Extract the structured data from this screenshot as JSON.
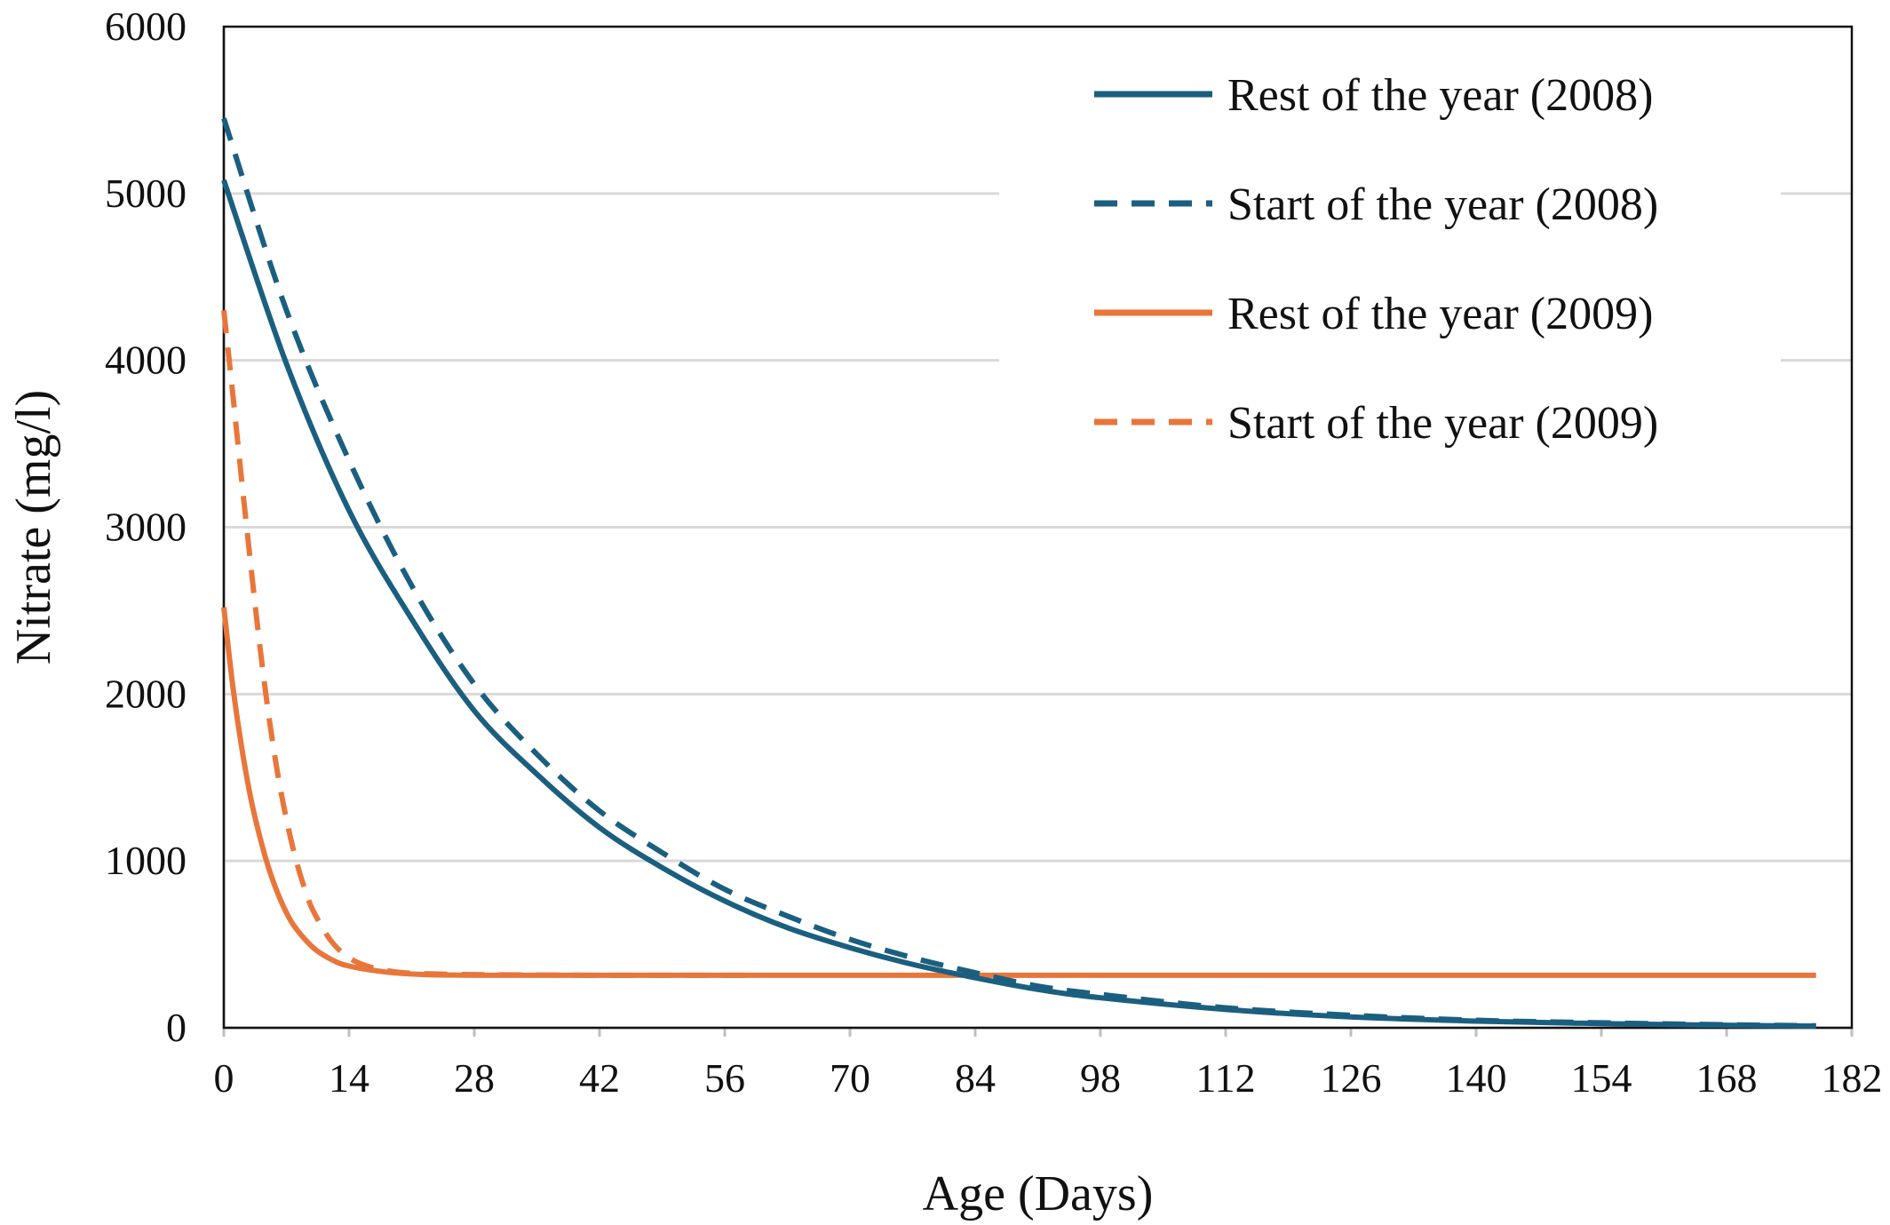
{
  "chart_data": {
    "type": "line",
    "title": "",
    "xlabel": "Age (Days)",
    "ylabel": "Nitrate (mg/l)",
    "xlim": [
      0,
      182
    ],
    "ylim": [
      0,
      6000
    ],
    "x_ticks": [
      0,
      14,
      28,
      42,
      56,
      70,
      84,
      98,
      112,
      126,
      140,
      154,
      168,
      182
    ],
    "y_ticks": [
      0,
      1000,
      2000,
      3000,
      4000,
      5000,
      6000
    ],
    "grid": "horizontal",
    "legend_position": "top-right",
    "series": [
      {
        "name": "Rest of the year (2008)",
        "color": "#1b5f80",
        "dash": "solid",
        "x": [
          0,
          7,
          14,
          21,
          28,
          35,
          42,
          49,
          56,
          63,
          70,
          77,
          84,
          91,
          98,
          112,
          126,
          140,
          154,
          168,
          178
        ],
        "y": [
          5080,
          3980,
          3100,
          2450,
          1900,
          1520,
          1200,
          960,
          760,
          600,
          480,
          380,
          300,
          230,
          180,
          110,
          65,
          40,
          25,
          15,
          10
        ]
      },
      {
        "name": "Start of the year (2008)",
        "color": "#1b5f80",
        "dash": "dashed",
        "x": [
          0,
          7,
          14,
          21,
          28,
          35,
          42,
          49,
          56,
          63,
          70,
          77,
          84,
          91,
          98,
          112,
          126,
          140,
          154,
          168,
          178
        ],
        "y": [
          5450,
          4300,
          3400,
          2650,
          2060,
          1640,
          1300,
          1050,
          830,
          670,
          530,
          420,
          330,
          250,
          200,
          120,
          75,
          45,
          30,
          18,
          12
        ]
      },
      {
        "name": "Rest of the year (2009)",
        "color": "#e8763a",
        "dash": "solid",
        "x": [
          0,
          1,
          2,
          3,
          4,
          5,
          6,
          7,
          8,
          10,
          12,
          14,
          18,
          22,
          30,
          60,
          90,
          120,
          150,
          178
        ],
        "y": [
          2520,
          2050,
          1680,
          1380,
          1150,
          960,
          810,
          690,
          600,
          480,
          410,
          370,
          335,
          320,
          315,
          315,
          315,
          315,
          315,
          315
        ]
      },
      {
        "name": "Start of the year (2009)",
        "color": "#e8763a",
        "dash": "dashed",
        "x": [
          0,
          1,
          2,
          3,
          4,
          5,
          6,
          7,
          8,
          9,
          10,
          12,
          14,
          16,
          18,
          20,
          24,
          30,
          40,
          60
        ],
        "y": [
          4300,
          3800,
          3280,
          2780,
          2300,
          1880,
          1530,
          1250,
          1020,
          840,
          700,
          520,
          420,
          370,
          345,
          330,
          322,
          318,
          315,
          315
        ]
      }
    ]
  }
}
